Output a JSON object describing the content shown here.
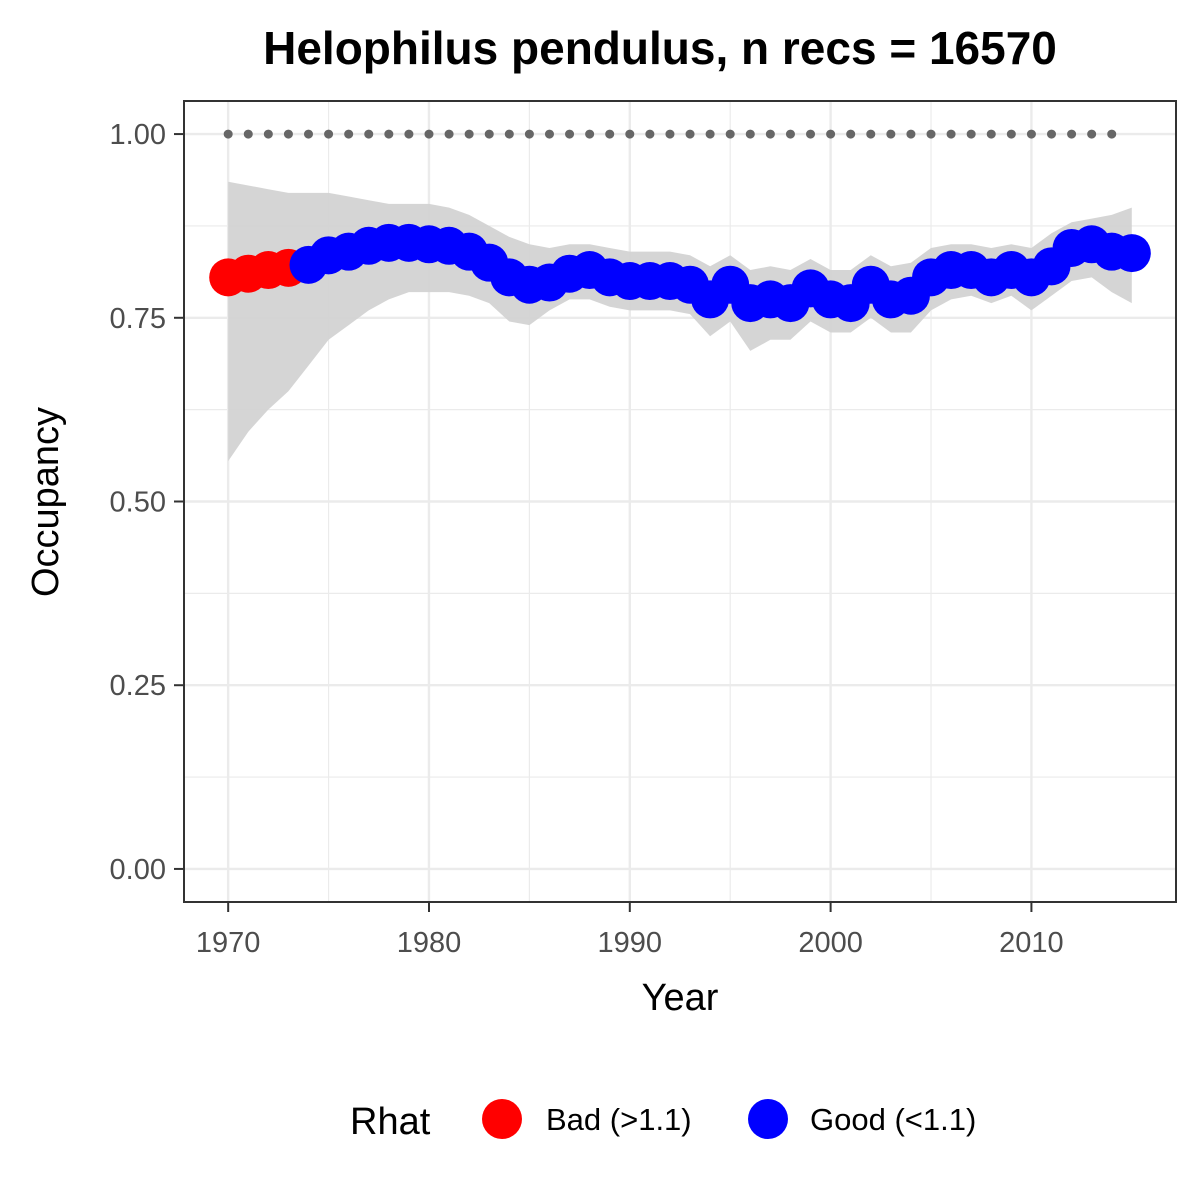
{
  "chart_data": {
    "type": "scatter",
    "title": "Helophilus pendulus, n recs = 16570",
    "xlabel": "Year",
    "ylabel": "Occupancy",
    "xlim": [
      1967.8,
      2017.2
    ],
    "ylim": [
      -0.045,
      1.045
    ],
    "x_ticks": [
      1970,
      1980,
      1990,
      2000,
      2010
    ],
    "x_tick_labels": [
      "1970",
      "1980",
      "1990",
      "2000",
      "2010"
    ],
    "y_ticks": [
      0,
      0.25,
      0.5,
      0.75,
      1.0
    ],
    "y_tick_labels": [
      "0.00",
      "0.25",
      "0.50",
      "0.75",
      "1.00"
    ],
    "grid": true,
    "legend": {
      "title": "Rhat",
      "position": "bottom",
      "entries": [
        {
          "label": "Bad (>1.1)",
          "color": "#ff0000"
        },
        {
          "label": "Good (<1.1)",
          "color": "#0000ff"
        }
      ]
    },
    "colors": {
      "bad": "#ff0000",
      "good": "#0000ff",
      "ribbon": "#d3d3d3",
      "reference": "#666666"
    },
    "reference_line": {
      "style": "dotted",
      "y": 1.0,
      "x": [
        1970,
        1971,
        1972,
        1973,
        1974,
        1975,
        1976,
        1977,
        1978,
        1979,
        1980,
        1981,
        1982,
        1983,
        1984,
        1985,
        1986,
        1987,
        1988,
        1989,
        1990,
        1991,
        1992,
        1993,
        1994,
        1995,
        1996,
        1997,
        1998,
        1999,
        2000,
        2001,
        2002,
        2003,
        2004,
        2005,
        2006,
        2007,
        2008,
        2009,
        2010,
        2011,
        2012,
        2013,
        2014
      ]
    },
    "series": {
      "x": [
        1970,
        1971,
        1972,
        1973,
        1974,
        1975,
        1976,
        1977,
        1978,
        1979,
        1980,
        1981,
        1982,
        1983,
        1984,
        1985,
        1986,
        1987,
        1988,
        1989,
        1990,
        1991,
        1992,
        1993,
        1994,
        1995,
        1996,
        1997,
        1998,
        1999,
        2000,
        2001,
        2002,
        2003,
        2004,
        2005,
        2006,
        2007,
        2008,
        2009,
        2010,
        2011,
        2012,
        2013,
        2014,
        2015
      ],
      "y": [
        0.805,
        0.81,
        0.815,
        0.818,
        0.822,
        0.835,
        0.84,
        0.848,
        0.852,
        0.852,
        0.85,
        0.848,
        0.84,
        0.825,
        0.805,
        0.795,
        0.798,
        0.81,
        0.815,
        0.805,
        0.8,
        0.8,
        0.8,
        0.795,
        0.775,
        0.795,
        0.77,
        0.775,
        0.77,
        0.79,
        0.775,
        0.77,
        0.795,
        0.775,
        0.78,
        0.805,
        0.815,
        0.815,
        0.805,
        0.815,
        0.805,
        0.82,
        0.845,
        0.85,
        0.84,
        0.838
      ],
      "rhat": [
        "bad",
        "bad",
        "bad",
        "bad",
        "good",
        "good",
        "good",
        "good",
        "good",
        "good",
        "good",
        "good",
        "good",
        "good",
        "good",
        "good",
        "good",
        "good",
        "good",
        "good",
        "good",
        "good",
        "good",
        "good",
        "good",
        "good",
        "good",
        "good",
        "good",
        "good",
        "good",
        "good",
        "good",
        "good",
        "good",
        "good",
        "good",
        "good",
        "good",
        "good",
        "good",
        "good",
        "good",
        "good",
        "good",
        "good"
      ],
      "lower": [
        0.555,
        0.595,
        0.625,
        0.65,
        0.685,
        0.72,
        0.74,
        0.76,
        0.775,
        0.785,
        0.785,
        0.785,
        0.78,
        0.77,
        0.745,
        0.74,
        0.76,
        0.775,
        0.775,
        0.765,
        0.76,
        0.76,
        0.76,
        0.755,
        0.725,
        0.745,
        0.705,
        0.72,
        0.72,
        0.745,
        0.73,
        0.73,
        0.75,
        0.73,
        0.73,
        0.76,
        0.775,
        0.78,
        0.77,
        0.78,
        0.76,
        0.78,
        0.8,
        0.805,
        0.785,
        0.77
      ],
      "upper": [
        0.935,
        0.93,
        0.925,
        0.92,
        0.92,
        0.92,
        0.915,
        0.91,
        0.905,
        0.905,
        0.905,
        0.9,
        0.89,
        0.875,
        0.86,
        0.85,
        0.845,
        0.85,
        0.85,
        0.845,
        0.84,
        0.84,
        0.84,
        0.835,
        0.82,
        0.835,
        0.815,
        0.82,
        0.815,
        0.83,
        0.815,
        0.815,
        0.835,
        0.82,
        0.825,
        0.845,
        0.85,
        0.85,
        0.845,
        0.85,
        0.845,
        0.865,
        0.88,
        0.885,
        0.89,
        0.9
      ]
    }
  }
}
